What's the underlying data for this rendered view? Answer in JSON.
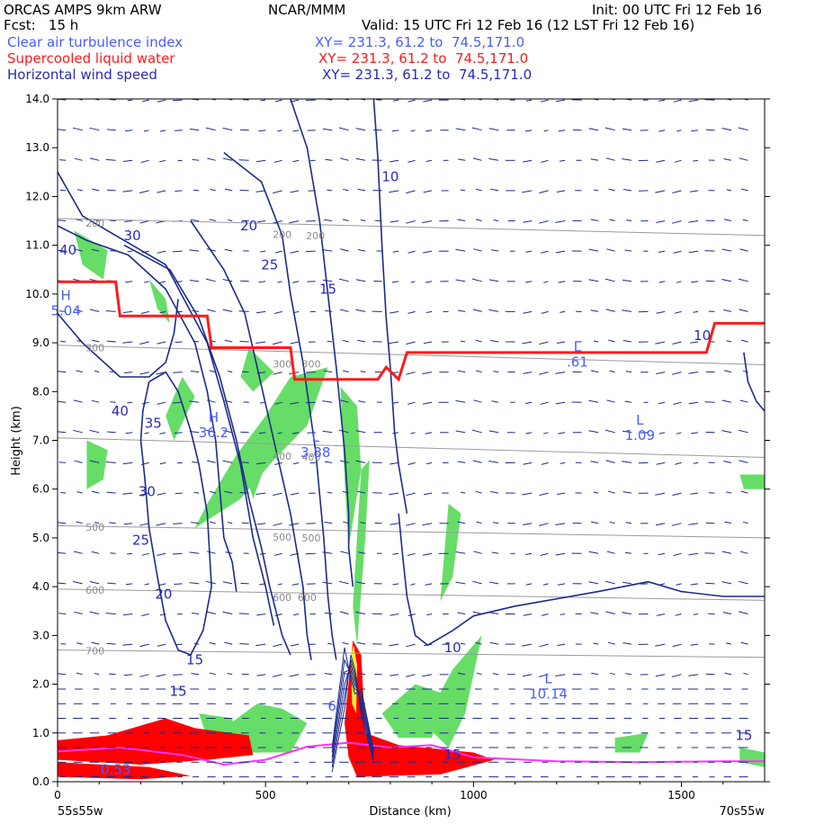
{
  "header": {
    "model": "ORCAS AMPS 9km ARW",
    "org": "NCAR/MMM",
    "init": "Init: 00 UTC Fri 12 Feb 16",
    "fcst": "Fcst:   15 h",
    "valid": "Valid: 15 UTC Fri 12 Feb 16 (12 LST Fri 12 Feb 16)",
    "fields": [
      {
        "name": "Clear air turbulence index",
        "xy": "XY= 231.3, 61.2 to  74.5,171.0",
        "color": "#4a5cff"
      },
      {
        "name": "Supercooled liquid water",
        "xy": "XY= 231.3, 61.2 to  74.5,171.0",
        "color": "#ff1a1a"
      },
      {
        "name": "Horizontal wind speed",
        "xy": "XY= 231.3, 61.2 to  74.5,171.0",
        "color": "#2a2ab8"
      }
    ]
  },
  "chart_data": {
    "type": "cross-section",
    "ylabel": "Height (km)",
    "xlabel": "Distance (km)",
    "x_start_label": "55s55w",
    "x_end_label": "70s55w",
    "xlim": [
      0,
      1700
    ],
    "ylim": [
      0.0,
      14.0
    ],
    "x_ticks": [
      0,
      500,
      1000,
      1500
    ],
    "y_ticks": [
      "0.0",
      "1.0",
      "2.0",
      "3.0",
      "4.0",
      "5.0",
      "6.0",
      "7.0",
      "8.0",
      "9.0",
      "10.0",
      "11.0",
      "12.0",
      "13.0",
      "14.0"
    ],
    "grid": false,
    "colors": {
      "wind_contour": "#1c2a8c",
      "pressure": "#9a9a9a",
      "turbulence_fill": "#66dd66",
      "tropopause": "#ff1a1a",
      "slw": "#ff0000",
      "barbs": "#1c2a8c",
      "magenta": "#ff33ff"
    },
    "pressure_levels": [
      {
        "label": "200",
        "x": [
          0,
          1700
        ],
        "y": [
          11.55,
          11.2
        ]
      },
      {
        "label": "300",
        "x": [
          0,
          1700
        ],
        "y": [
          8.95,
          8.55
        ]
      },
      {
        "label": "400",
        "x": [
          0,
          1700
        ],
        "y": [
          7.05,
          6.65
        ]
      },
      {
        "label": "500",
        "x": [
          0,
          1700
        ],
        "y": [
          5.25,
          5.0
        ]
      },
      {
        "label": "600",
        "x": [
          0,
          1700
        ],
        "y": [
          3.95,
          3.72
        ]
      },
      {
        "label": "700",
        "x": [
          0,
          1700
        ],
        "y": [
          2.7,
          2.55
        ]
      }
    ],
    "pressure_labels": [
      {
        "text": "200",
        "x": 90,
        "y": 11.45
      },
      {
        "text": "200",
        "x": 540,
        "y": 11.22
      },
      {
        "text": "200",
        "x": 620,
        "y": 11.2
      },
      {
        "text": "300",
        "x": 90,
        "y": 8.9
      },
      {
        "text": "300",
        "x": 540,
        "y": 8.57
      },
      {
        "text": "300",
        "x": 610,
        "y": 8.57
      },
      {
        "text": "400",
        "x": 540,
        "y": 6.68
      },
      {
        "text": "400",
        "x": 610,
        "y": 6.66
      },
      {
        "text": "500",
        "x": 90,
        "y": 5.22
      },
      {
        "text": "500",
        "x": 540,
        "y": 5.02
      },
      {
        "text": "500",
        "x": 610,
        "y": 5.0
      },
      {
        "text": "600",
        "x": 90,
        "y": 3.93
      },
      {
        "text": "600",
        "x": 540,
        "y": 3.78
      },
      {
        "text": "600",
        "x": 600,
        "y": 3.78
      },
      {
        "text": "700",
        "x": 90,
        "y": 2.68
      }
    ],
    "tropopause": {
      "x": [
        0,
        140,
        150,
        360,
        370,
        560,
        570,
        770,
        790,
        820,
        840,
        1000,
        1020,
        1540,
        1560,
        1580,
        1700
      ],
      "y": [
        10.25,
        10.25,
        9.55,
        9.55,
        8.9,
        8.9,
        8.25,
        8.25,
        8.5,
        8.25,
        8.8,
        8.8,
        8.8,
        8.8,
        8.8,
        9.4,
        9.4
      ]
    },
    "wind_contours": [
      {
        "x": [
          0,
          60,
          150,
          220,
          260,
          280,
          290
        ],
        "y": [
          9.6,
          9.0,
          8.3,
          8.3,
          8.6,
          9.2,
          9.9
        ]
      },
      {
        "x": [
          0,
          70,
          170,
          260,
          330,
          360,
          380,
          390,
          400,
          420,
          430
        ],
        "y": [
          11.4,
          11.1,
          10.8,
          10.1,
          9.0,
          8.0,
          7.0,
          6.0,
          5.0,
          4.5,
          3.9
        ]
      },
      {
        "x": [
          0,
          60,
          140,
          260,
          310,
          360,
          400,
          440,
          470,
          500,
          520
        ],
        "y": [
          12.5,
          11.6,
          11.2,
          10.6,
          9.8,
          9.0,
          7.8,
          6.5,
          5.0,
          4.0,
          3.2
        ]
      },
      {
        "x": [
          160,
          270,
          340,
          390,
          430,
          460,
          490,
          510,
          540,
          560
        ],
        "y": [
          11.0,
          10.5,
          9.5,
          8.3,
          7.0,
          5.8,
          4.8,
          4.0,
          3.0,
          2.6
        ]
      },
      {
        "x": [
          320,
          400,
          450,
          480,
          520,
          560,
          590,
          600,
          610
        ],
        "y": [
          11.5,
          10.5,
          9.6,
          8.5,
          7.0,
          5.5,
          4.0,
          3.0,
          2.5
        ]
      },
      {
        "x": [
          400,
          490,
          540,
          560,
          590,
          620,
          640,
          650,
          660,
          670
        ],
        "y": [
          12.9,
          12.3,
          11.2,
          10.0,
          8.6,
          6.8,
          5.0,
          3.8,
          3.0,
          2.5
        ]
      },
      {
        "x": [
          560,
          600,
          630,
          650,
          670,
          690,
          700
        ],
        "y": [
          14.0,
          13.0,
          11.5,
          10.0,
          8.5,
          6.8,
          5.5
        ]
      },
      {
        "x": [
          760,
          770,
          780,
          790,
          800,
          810,
          820,
          840
        ],
        "y": [
          14.0,
          12.8,
          11.0,
          9.5,
          8.5,
          7.2,
          6.5,
          5.5
        ]
      },
      {
        "x": [
          700,
          700,
          710
        ],
        "y": [
          5.5,
          4.8,
          4.0
        ]
      },
      {
        "x": [
          820,
          830,
          840,
          860,
          890,
          950,
          1000,
          1100,
          1300,
          1420,
          1500,
          1600,
          1700
        ],
        "y": [
          5.5,
          4.6,
          3.8,
          3.0,
          2.8,
          3.1,
          3.4,
          3.6,
          3.9,
          4.1,
          3.9,
          3.8,
          3.8
        ]
      },
      {
        "x": [
          220,
          260,
          290,
          320,
          340,
          360,
          370,
          350,
          320,
          290,
          260,
          240,
          220,
          210,
          200,
          205,
          220
        ],
        "y": [
          8.2,
          8.4,
          8.0,
          7.2,
          6.5,
          5.5,
          4.0,
          3.1,
          2.6,
          2.7,
          3.3,
          4.2,
          5.2,
          6.2,
          7.0,
          7.6,
          8.2
        ]
      },
      {
        "x": [
          1650,
          1660,
          1680,
          1700
        ],
        "y": [
          8.8,
          8.2,
          7.8,
          7.6
        ]
      }
    ],
    "contour_labels": [
      {
        "text": "40",
        "x": 25,
        "y": 10.9
      },
      {
        "text": "30",
        "x": 180,
        "y": 11.2
      },
      {
        "text": "20",
        "x": 460,
        "y": 11.4
      },
      {
        "text": "25",
        "x": 510,
        "y": 10.6
      },
      {
        "text": "15",
        "x": 650,
        "y": 10.1
      },
      {
        "text": "10",
        "x": 800,
        "y": 12.4
      },
      {
        "text": "40",
        "x": 150,
        "y": 7.6
      },
      {
        "text": "35",
        "x": 230,
        "y": 7.35
      },
      {
        "text": "30",
        "x": 215,
        "y": 5.95
      },
      {
        "text": "25",
        "x": 200,
        "y": 4.95
      },
      {
        "text": "20",
        "x": 255,
        "y": 3.85
      },
      {
        "text": "15",
        "x": 330,
        "y": 2.5
      },
      {
        "text": "15",
        "x": 290,
        "y": 1.85
      },
      {
        "text": "10",
        "x": 950,
        "y": 2.75
      },
      {
        "text": "10",
        "x": 1550,
        "y": 9.15
      },
      {
        "text": "15",
        "x": 1650,
        "y": 0.95
      },
      {
        "text": "15",
        "x": 950,
        "y": 0.55
      }
    ],
    "extrema": [
      {
        "type": "H",
        "value": "5.04",
        "x": 20,
        "y": 9.8,
        "color": "#4a5cff"
      },
      {
        "type": "H",
        "value": "36.2",
        "x": 375,
        "y": 7.3,
        "color": "#4a5cff"
      },
      {
        "type": "L",
        "value": "3.88",
        "x": 620,
        "y": 6.9,
        "color": "#4a5cff"
      },
      {
        "type": "L",
        "value": ".61",
        "x": 1250,
        "y": 8.75,
        "color": "#4a5cff"
      },
      {
        "type": "L",
        "value": "1.09",
        "x": 1400,
        "y": 7.25,
        "color": "#4a5cff"
      },
      {
        "type": "L",
        "value": "10.14",
        "x": 1180,
        "y": 1.95,
        "color": "#4a5cff"
      },
      {
        "type": "",
        "value": "6",
        "x": 660,
        "y": 1.7,
        "color": "#4a5cff"
      },
      {
        "type": "",
        "value": "0.53",
        "x": 140,
        "y": 0.4,
        "color": "#4a5cff"
      }
    ]
  }
}
